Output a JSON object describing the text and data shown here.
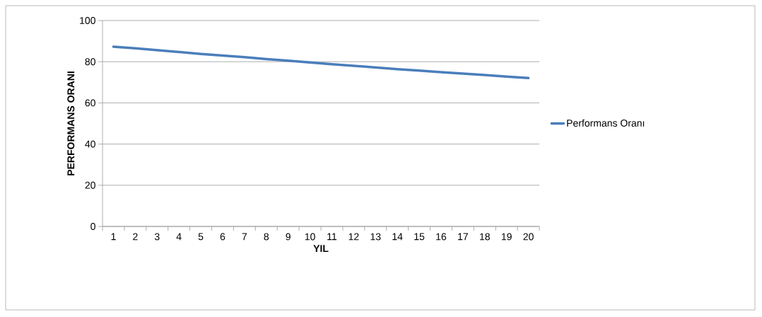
{
  "chart_data": {
    "type": "line",
    "xlabel": "YIL",
    "ylabel": "PERFORMANS ORANI",
    "categories": [
      "1",
      "2",
      "3",
      "4",
      "5",
      "6",
      "7",
      "8",
      "9",
      "10",
      "11",
      "12",
      "13",
      "14",
      "15",
      "16",
      "17",
      "18",
      "19",
      "20"
    ],
    "series": [
      {
        "name": "Performans Oranı",
        "color": "#4a7ebb",
        "values": [
          87.3,
          86.5,
          85.6,
          84.7,
          83.8,
          83.0,
          82.2,
          81.3,
          80.5,
          79.6,
          78.8,
          78.0,
          77.2,
          76.4,
          75.7,
          74.9,
          74.2,
          73.5,
          72.8,
          72.1
        ]
      }
    ],
    "ylim": [
      0,
      100
    ],
    "yticks": [
      0,
      20,
      40,
      60,
      80,
      100
    ],
    "grid": "y",
    "legend": "right",
    "marker": "none",
    "line_style": "solid"
  }
}
